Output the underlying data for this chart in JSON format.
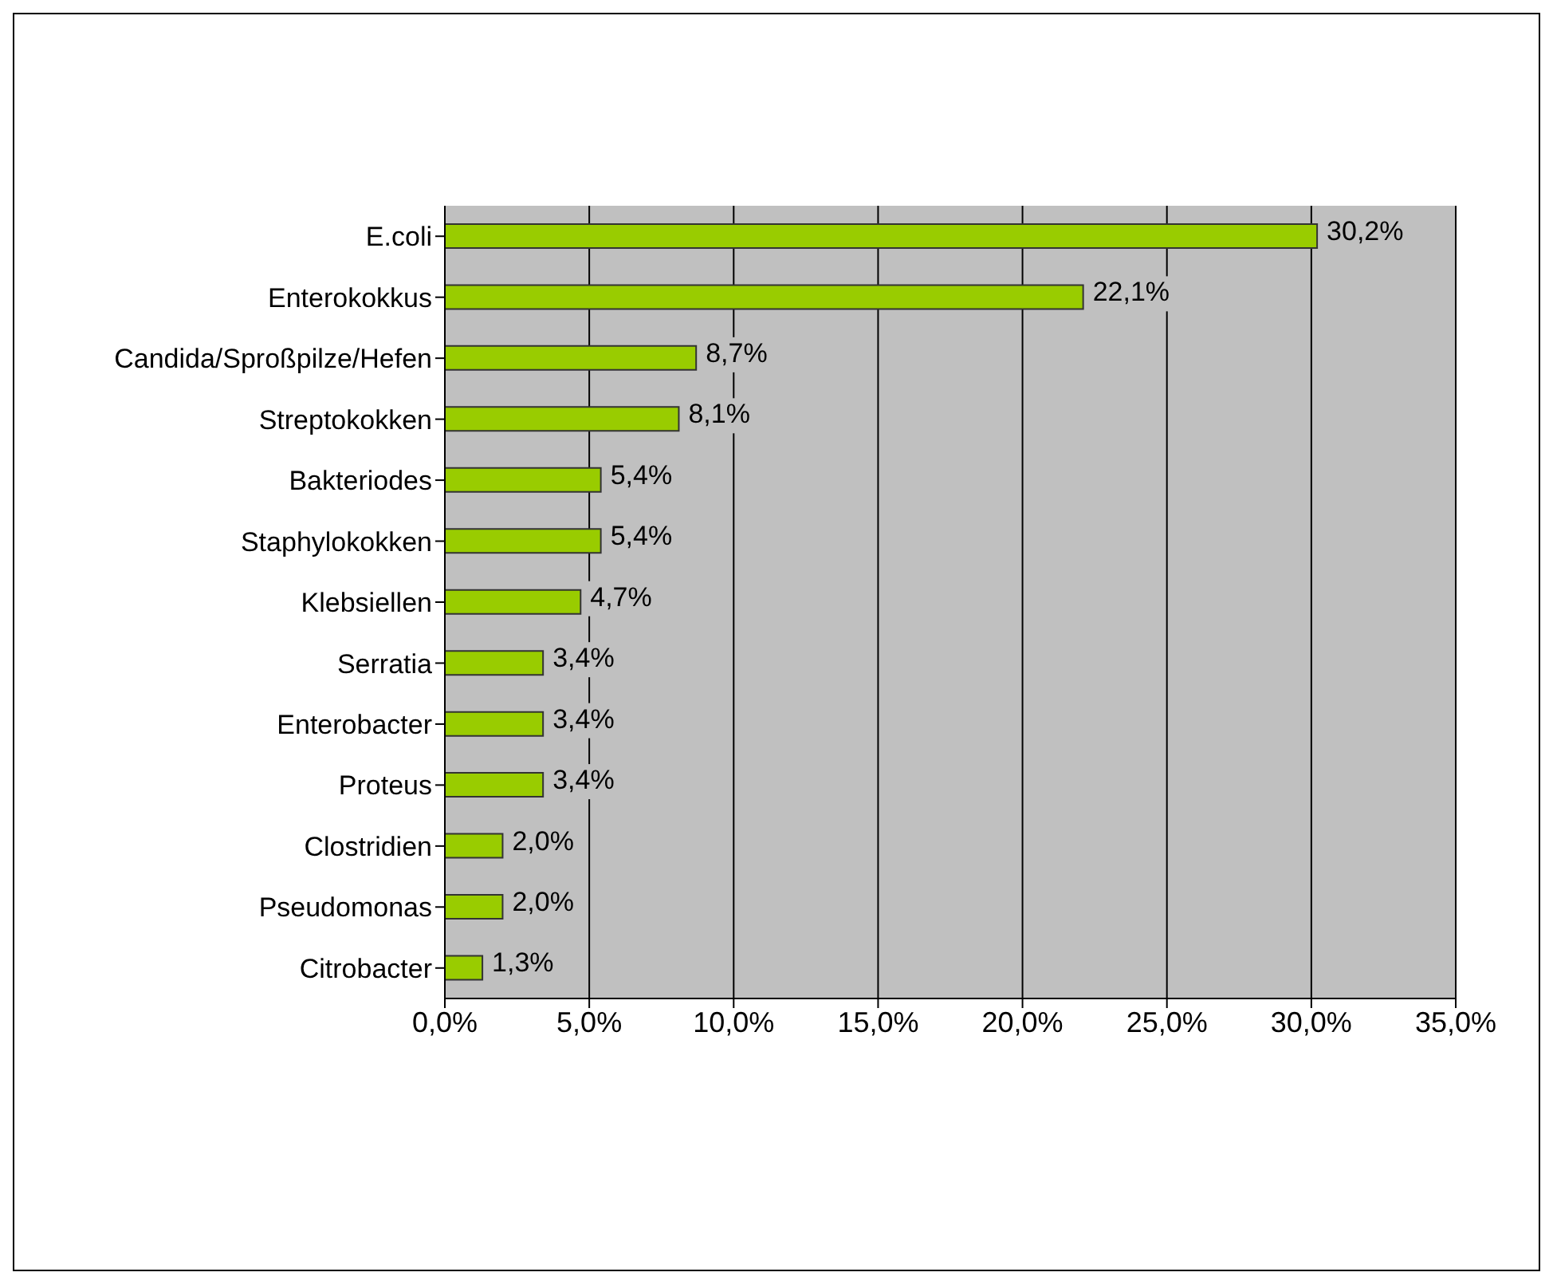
{
  "chart_data": {
    "type": "bar",
    "orientation": "horizontal",
    "categories": [
      "E.coli",
      "Enterokokkus",
      "Candida/Sproßpilze/Hefen",
      "Streptokokken",
      "Bakteriodes",
      "Staphylokokken",
      "Klebsiellen",
      "Serratia",
      "Enterobacter",
      "Proteus",
      "Clostridien",
      "Pseudomonas",
      "Citrobacter"
    ],
    "values": [
      30.2,
      22.1,
      8.7,
      8.1,
      5.4,
      5.4,
      4.7,
      3.4,
      3.4,
      3.4,
      2.0,
      2.0,
      1.3
    ],
    "value_labels": [
      "30,2%",
      "22,1%",
      "8,7%",
      "8,1%",
      "5,4%",
      "5,4%",
      "4,7%",
      "3,4%",
      "3,4%",
      "3,4%",
      "2,0%",
      "2,0%",
      "1,3%"
    ],
    "color": "#99cc00",
    "xlim": [
      0,
      35
    ],
    "xticks": [
      {
        "value": 0,
        "label": "0,0%"
      },
      {
        "value": 5,
        "label": "5,0%"
      },
      {
        "value": 10,
        "label": "10,0%"
      },
      {
        "value": 15,
        "label": "15,0%"
      },
      {
        "value": 20,
        "label": "20,0%"
      },
      {
        "value": 25,
        "label": "25,0%"
      },
      {
        "value": 30,
        "label": "30,0%"
      },
      {
        "value": 35,
        "label": "35,0%"
      }
    ],
    "grid": "x"
  }
}
